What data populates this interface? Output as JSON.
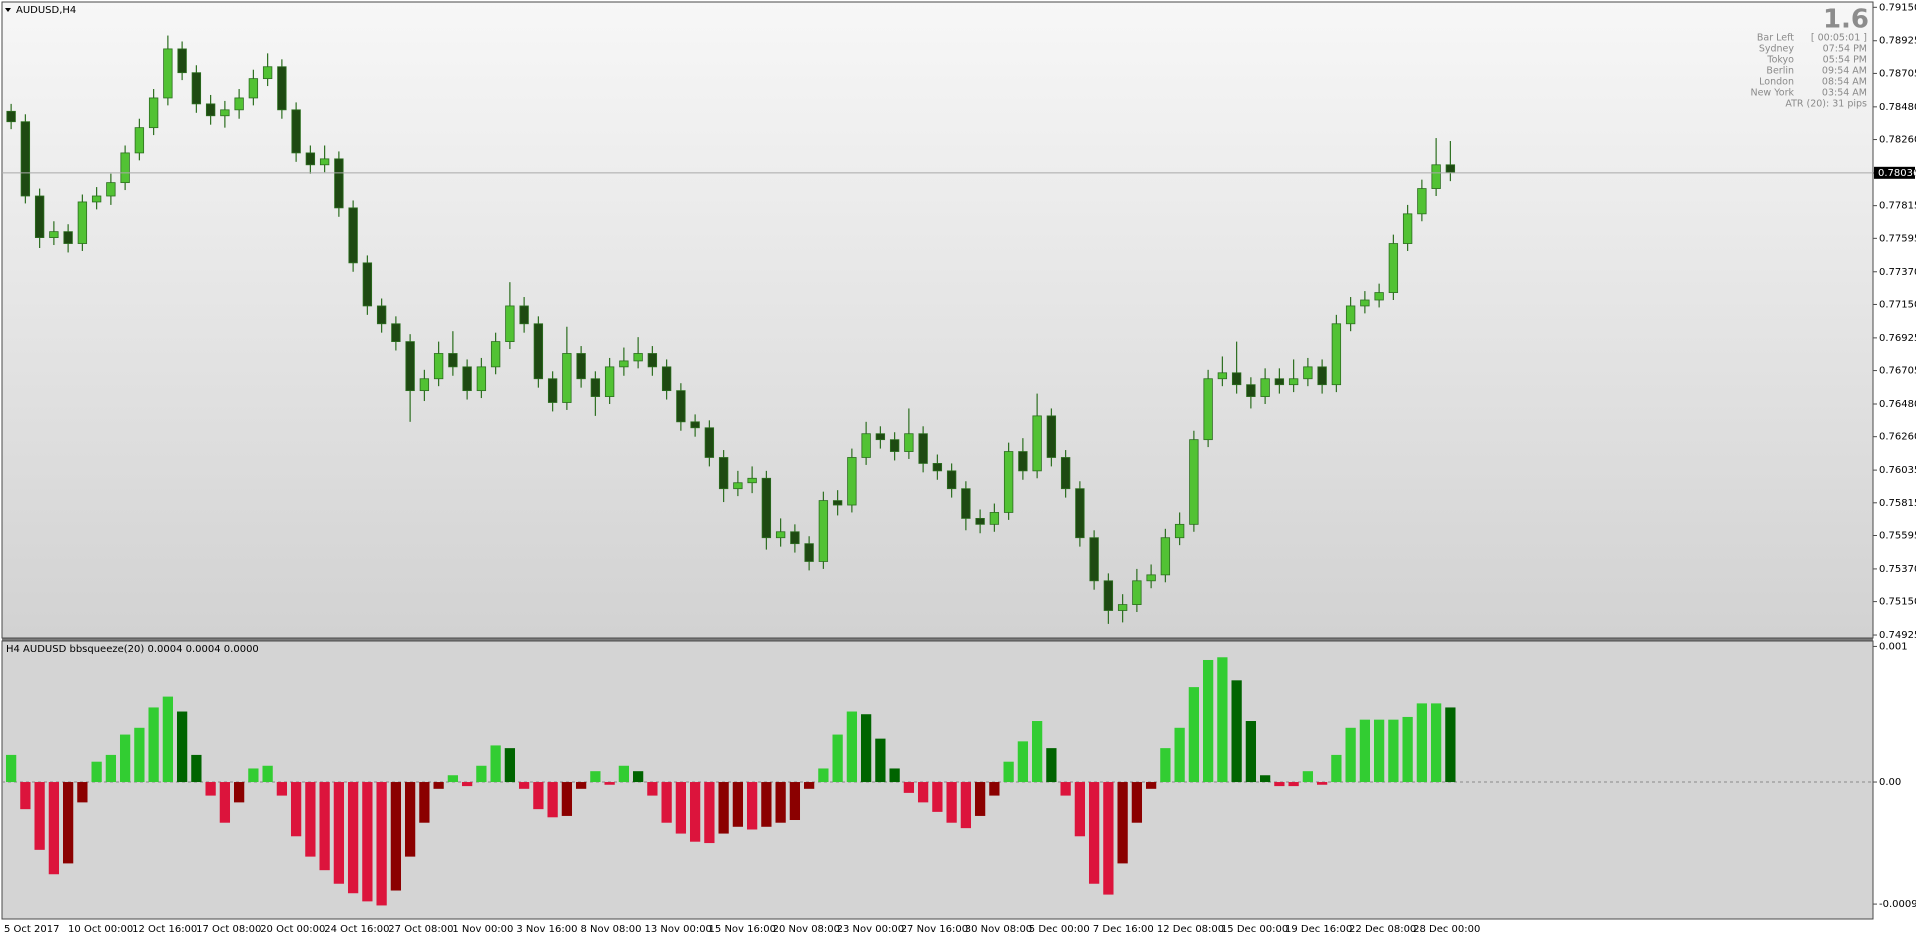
{
  "chart_data": [
    {
      "type": "candlestick",
      "title": "AUDUSD,H4",
      "open": [
        0.7845,
        0.7838,
        0.7788,
        0.776,
        0.7764,
        0.7756,
        0.7784,
        0.7788,
        0.7797,
        0.7817,
        0.7834,
        0.7854,
        0.7887,
        0.7871,
        0.785,
        0.7842,
        0.7846,
        0.7854,
        0.7867,
        0.7875,
        0.7846,
        0.7817,
        0.7809,
        0.7813,
        0.778,
        0.7743,
        0.7714,
        0.7702,
        0.769,
        0.7657,
        0.7665,
        0.7682,
        0.7673,
        0.7657,
        0.7673,
        0.769,
        0.7714,
        0.7702,
        0.7665,
        0.7649,
        0.7682,
        0.7665,
        0.7653,
        0.7673,
        0.7677,
        0.7682,
        0.7673,
        0.7657,
        0.7636,
        0.7632,
        0.7612,
        0.7591,
        0.7595,
        0.7598,
        0.7558,
        0.7562,
        0.7554,
        0.7542,
        0.7583,
        0.758,
        0.7612,
        0.7628,
        0.7624,
        0.7616,
        0.7628,
        0.7608,
        0.7603,
        0.7591,
        0.7571,
        0.7567,
        0.7575,
        0.7616,
        0.7603,
        0.764,
        0.7612,
        0.7591,
        0.7558,
        0.7529,
        0.7509,
        0.7513,
        0.7529,
        0.7533,
        0.7558,
        0.7567,
        0.7624,
        0.7665,
        0.7669,
        0.7661,
        0.7653,
        0.7665,
        0.7661,
        0.7665,
        0.7673,
        0.7661,
        0.7702,
        0.7714,
        0.7718,
        0.7723,
        0.7756,
        0.7776,
        0.7793,
        0.7809
      ],
      "high": [
        0.785,
        0.7843,
        0.7793,
        0.7771,
        0.7769,
        0.7789,
        0.7794,
        0.7803,
        0.7822,
        0.784,
        0.786,
        0.7896,
        0.7892,
        0.7876,
        0.7856,
        0.7852,
        0.786,
        0.7873,
        0.7884,
        0.788,
        0.7851,
        0.7822,
        0.7822,
        0.7818,
        0.7785,
        0.7748,
        0.7719,
        0.7707,
        0.7695,
        0.7671,
        0.769,
        0.7697,
        0.7678,
        0.7679,
        0.7696,
        0.773,
        0.772,
        0.7707,
        0.767,
        0.77,
        0.7687,
        0.767,
        0.7679,
        0.7686,
        0.7693,
        0.7687,
        0.7678,
        0.7662,
        0.7641,
        0.7637,
        0.7617,
        0.7603,
        0.7606,
        0.7603,
        0.7571,
        0.7567,
        0.7559,
        0.7589,
        0.759,
        0.7618,
        0.7636,
        0.7633,
        0.7629,
        0.7645,
        0.7633,
        0.7614,
        0.7608,
        0.7596,
        0.7577,
        0.7581,
        0.7622,
        0.7625,
        0.7655,
        0.7645,
        0.7617,
        0.7596,
        0.7563,
        0.7534,
        0.752,
        0.7537,
        0.754,
        0.7564,
        0.7575,
        0.763,
        0.7671,
        0.768,
        0.769,
        0.7666,
        0.7672,
        0.7672,
        0.7678,
        0.7679,
        0.7678,
        0.7708,
        0.772,
        0.7724,
        0.7729,
        0.7762,
        0.7782,
        0.7799,
        0.7827,
        0.7825
      ],
      "low": [
        0.7833,
        0.7783,
        0.7753,
        0.7755,
        0.775,
        0.7751,
        0.7779,
        0.7782,
        0.7792,
        0.7812,
        0.7829,
        0.7849,
        0.7866,
        0.7844,
        0.7836,
        0.7834,
        0.784,
        0.7849,
        0.7862,
        0.784,
        0.7811,
        0.7803,
        0.7804,
        0.7774,
        0.7737,
        0.7708,
        0.7696,
        0.7684,
        0.7636,
        0.765,
        0.766,
        0.7667,
        0.7651,
        0.7652,
        0.7668,
        0.7685,
        0.7696,
        0.7659,
        0.7643,
        0.7644,
        0.7659,
        0.764,
        0.7648,
        0.7667,
        0.7672,
        0.7667,
        0.7651,
        0.763,
        0.7626,
        0.7606,
        0.7582,
        0.7586,
        0.7588,
        0.755,
        0.7552,
        0.7548,
        0.7536,
        0.7537,
        0.7573,
        0.7575,
        0.7607,
        0.7618,
        0.761,
        0.7611,
        0.7602,
        0.7597,
        0.7585,
        0.7563,
        0.7561,
        0.7562,
        0.757,
        0.7597,
        0.7598,
        0.7606,
        0.7585,
        0.7552,
        0.7523,
        0.75,
        0.7501,
        0.7508,
        0.7524,
        0.7528,
        0.7553,
        0.7562,
        0.7619,
        0.766,
        0.7655,
        0.7645,
        0.7648,
        0.7655,
        0.7656,
        0.766,
        0.7655,
        0.7656,
        0.7697,
        0.7709,
        0.7713,
        0.7718,
        0.7751,
        0.7771,
        0.7788,
        0.7798
      ],
      "close": [
        0.7838,
        0.7788,
        0.776,
        0.7764,
        0.7756,
        0.7784,
        0.7788,
        0.7797,
        0.7817,
        0.7834,
        0.7854,
        0.7887,
        0.7871,
        0.785,
        0.7842,
        0.7846,
        0.7854,
        0.7867,
        0.7875,
        0.7846,
        0.7817,
        0.7809,
        0.7813,
        0.778,
        0.7743,
        0.7714,
        0.7702,
        0.769,
        0.7657,
        0.7665,
        0.7682,
        0.7673,
        0.7657,
        0.7673,
        0.769,
        0.7714,
        0.7702,
        0.7665,
        0.7649,
        0.7682,
        0.7665,
        0.7653,
        0.7673,
        0.7677,
        0.7682,
        0.7673,
        0.7657,
        0.7636,
        0.7632,
        0.7612,
        0.7591,
        0.7595,
        0.7598,
        0.7558,
        0.7562,
        0.7554,
        0.7542,
        0.7583,
        0.758,
        0.7612,
        0.7628,
        0.7624,
        0.7616,
        0.7628,
        0.7608,
        0.7603,
        0.7591,
        0.7571,
        0.7567,
        0.7575,
        0.7616,
        0.7603,
        0.764,
        0.7612,
        0.7591,
        0.7558,
        0.7529,
        0.7509,
        0.7513,
        0.7529,
        0.7533,
        0.7558,
        0.7567,
        0.7624,
        0.7665,
        0.7669,
        0.7661,
        0.7653,
        0.7665,
        0.7661,
        0.7665,
        0.7673,
        0.7661,
        0.7702,
        0.7714,
        0.7718,
        0.7723,
        0.7756,
        0.7776,
        0.7793,
        0.7809,
        0.7804
      ],
      "up_color": "#52c234",
      "down_color": "#1e4a12",
      "wick_color": "#2c6e1f",
      "ylim": [
        0.74905,
        0.79179
      ],
      "yticks": [
        {
          "value": 0.7915,
          "label": "0.79150"
        },
        0.78925,
        0.78705,
        {
          "value": 0.7848,
          "label": "0.78480"
        },
        {
          "value": 0.7826,
          "label": "0.78260"
        },
        0.78035,
        0.77815,
        0.77595,
        {
          "value": 0.7737,
          "label": "0.77370"
        },
        {
          "value": 0.7715,
          "label": "0.77150"
        },
        0.76925,
        0.76705,
        {
          "value": 0.7648,
          "label": "0.76480"
        },
        {
          "value": 0.7626,
          "label": "0.76260"
        },
        0.76035,
        0.75815,
        0.75595,
        {
          "value": 0.7537,
          "label": "0.75370"
        },
        {
          "value": 0.7515,
          "label": "0.75150"
        },
        0.74925
      ],
      "last_price": 0.78036,
      "xtick_labels": [
        "5 Oct 2017",
        "10 Oct 00:00",
        "12 Oct 16:00",
        "17 Oct 08:00",
        "20 Oct 00:00",
        "24 Oct 16:00",
        "27 Oct 08:00",
        "1 Nov 00:00",
        "3 Nov 16:00",
        "8 Nov 08:00",
        "13 Nov 00:00",
        "15 Nov 16:00",
        "20 Nov 08:00",
        "23 Nov 00:00",
        "27 Nov 16:00",
        "30 Nov 08:00",
        "5 Dec 00:00",
        "7 Dec 16:00",
        "12 Dec 08:00",
        "15 Dec 00:00",
        "19 Dec 16:00",
        "22 Dec 08:00",
        "28 Dec 00:00"
      ]
    },
    {
      "type": "bar",
      "title": "H4 AUDUSD bbsqueeze(20) 0.0004 0.0004 0.0000",
      "values": [
        0.0002,
        -0.0002,
        -0.0005,
        -0.00068,
        -0.0006,
        -0.00015,
        0.00015,
        0.0002,
        0.00035,
        0.0004,
        0.00055,
        0.00063,
        0.00052,
        0.0002,
        -0.0001,
        -0.0003,
        -0.00015,
        0.0001,
        0.00012,
        -0.0001,
        -0.0004,
        -0.00055,
        -0.00065,
        -0.00075,
        -0.00082,
        -0.00088,
        -0.00091,
        -0.0008,
        -0.00055,
        -0.0003,
        -5e-05,
        5e-05,
        -3e-05,
        0.00012,
        0.00027,
        0.00025,
        -5e-05,
        -0.0002,
        -0.00026,
        -0.00025,
        -5e-05,
        8e-05,
        -2e-05,
        0.00012,
        8e-05,
        -0.0001,
        -0.0003,
        -0.00038,
        -0.00044,
        -0.00045,
        -0.00038,
        -0.00033,
        -0.00035,
        -0.00033,
        -0.0003,
        -0.00028,
        -5e-05,
        0.0001,
        0.00035,
        0.00052,
        0.0005,
        0.00032,
        0.0001,
        -8e-05,
        -0.00015,
        -0.00022,
        -0.0003,
        -0.00034,
        -0.00025,
        -0.0001,
        0.00015,
        0.0003,
        0.00045,
        0.00025,
        -0.0001,
        -0.0004,
        -0.00075,
        -0.00083,
        -0.0006,
        -0.0003,
        -5e-05,
        0.00025,
        0.0004,
        0.0007,
        0.0009,
        0.00092,
        0.00075,
        0.00045,
        5e-05,
        -3e-05,
        -3e-05,
        8e-05,
        -2e-05,
        0.0002,
        0.0004,
        0.00046,
        0.00046,
        0.00046,
        0.00048,
        0.00058,
        0.00058,
        0.00055
      ],
      "colors": {
        "up_rising": "#32cd32",
        "up_falling": "#006400",
        "down_falling": "#dc143c",
        "down_rising": "#8b0000"
      },
      "ylim": [
        -0.00101,
        0.00104
      ],
      "yticks": [
        0.001,
        {
          "value": 0,
          "label": "0.00"
        },
        -0.0009
      ]
    }
  ],
  "info_panel": {
    "spread": 1.6,
    "rows": [
      [
        "Bar Left",
        "[ 00:05:01 ]"
      ],
      [
        "Sydney",
        "07:54 PM"
      ],
      [
        "Tokyo",
        "05:54 PM"
      ],
      [
        "Berlin",
        "09:54 AM"
      ],
      [
        "London",
        "08:54 AM"
      ],
      [
        "New York",
        "03:54 AM"
      ]
    ],
    "atr": "ATR (20): 31 pips"
  }
}
